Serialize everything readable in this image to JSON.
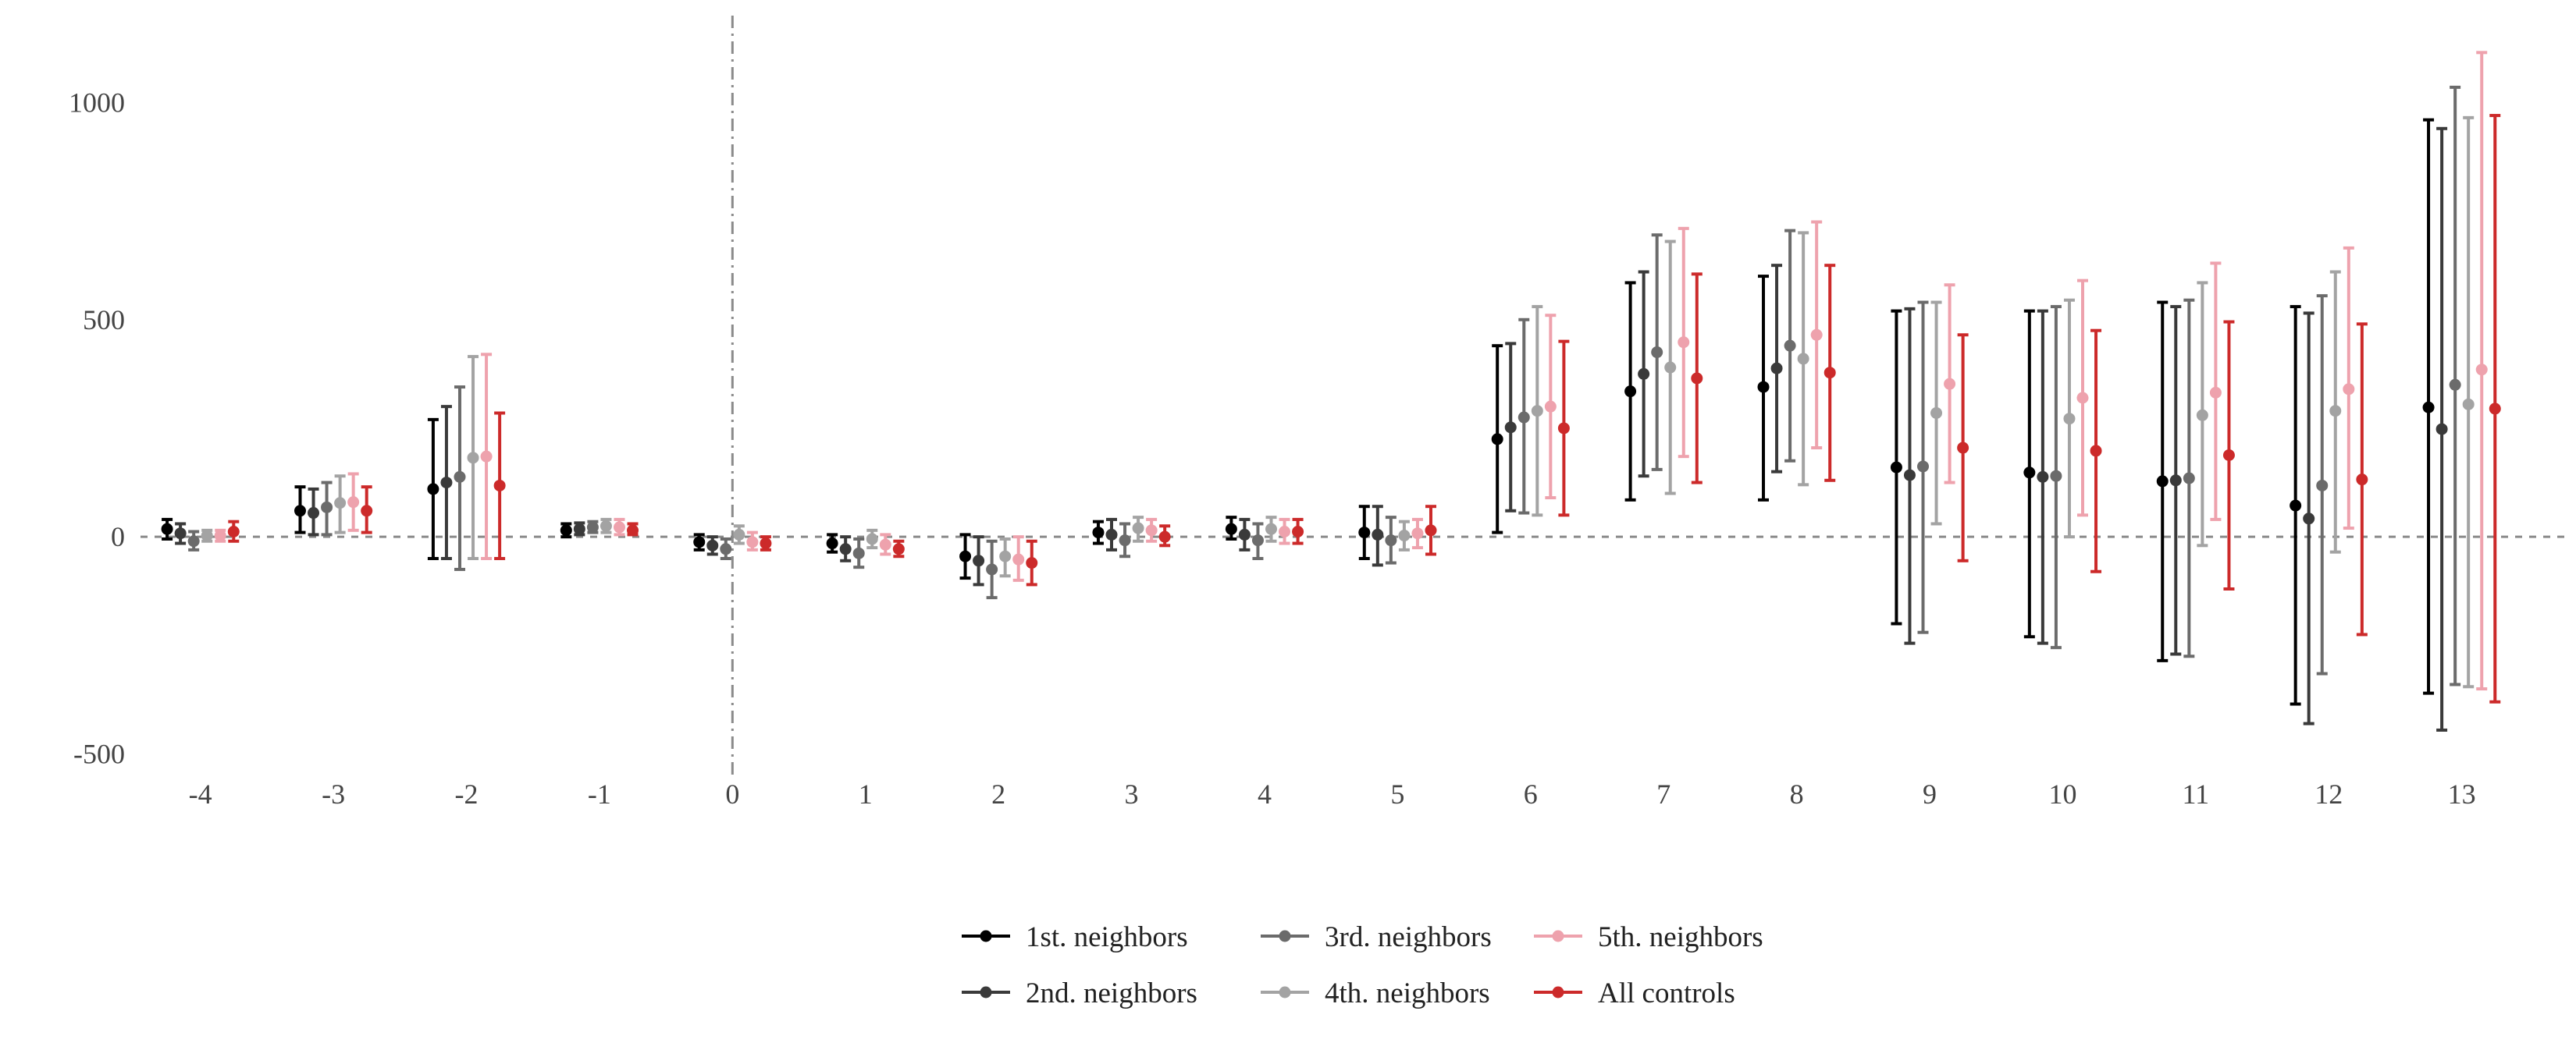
{
  "chart_data": {
    "type": "scatter",
    "subtype": "event-study point estimates with confidence intervals",
    "title": "",
    "xlabel": "",
    "ylabel": "",
    "x": [
      -4,
      -3,
      -2,
      -1,
      0,
      1,
      2,
      3,
      4,
      5,
      6,
      7,
      8,
      9,
      10,
      11,
      12,
      13
    ],
    "x_tick_labels": [
      "-4",
      "-3",
      "-2",
      "-1",
      "0",
      "1",
      "2",
      "3",
      "4",
      "5",
      "6",
      "7",
      "8",
      "9",
      "10",
      "11",
      "12",
      "13"
    ],
    "y_ticks": [
      -500,
      0,
      500,
      1000
    ],
    "y_tick_labels": [
      "-500",
      "0",
      "500",
      "1000"
    ],
    "ylim": [
      -560,
      1200
    ],
    "xlim": [
      -4.45,
      13.8
    ],
    "reference_lines": {
      "y": 0,
      "x": 0
    },
    "grid": false,
    "legend_position": "bottom",
    "series": [
      {
        "name": "1st. neighbors",
        "color": "#000000",
        "values": [
          18,
          60,
          110,
          15,
          -12,
          -15,
          -45,
          10,
          18,
          10,
          225,
          335,
          345,
          160,
          148,
          128,
          72,
          298
        ],
        "lower": [
          -5,
          10,
          -50,
          0,
          -30,
          -35,
          -95,
          -15,
          -5,
          -50,
          10,
          85,
          85,
          -200,
          -230,
          -285,
          -385,
          -360
        ],
        "upper": [
          40,
          115,
          270,
          30,
          5,
          5,
          5,
          35,
          45,
          70,
          440,
          585,
          600,
          520,
          520,
          540,
          530,
          960
        ]
      },
      {
        "name": "2nd. neighbors",
        "color": "#3a3a3a",
        "values": [
          8,
          55,
          125,
          18,
          -20,
          -28,
          -55,
          5,
          5,
          5,
          252,
          375,
          388,
          142,
          138,
          130,
          42,
          248
        ],
        "lower": [
          -15,
          5,
          -50,
          5,
          -40,
          -55,
          -110,
          -30,
          -30,
          -65,
          60,
          140,
          150,
          -245,
          -245,
          -270,
          -430,
          -445
        ],
        "upper": [
          30,
          110,
          300,
          32,
          0,
          0,
          0,
          40,
          40,
          70,
          445,
          610,
          625,
          525,
          520,
          530,
          515,
          940
        ]
      },
      {
        "name": "3rd. neighbors",
        "color": "#6b6b6b",
        "values": [
          -10,
          68,
          138,
          22,
          -28,
          -38,
          -75,
          -8,
          -8,
          -8,
          275,
          425,
          440,
          162,
          140,
          135,
          118,
          350
        ],
        "lower": [
          -30,
          5,
          -75,
          10,
          -50,
          -70,
          -140,
          -45,
          -50,
          -60,
          55,
          155,
          175,
          -220,
          -255,
          -275,
          -315,
          -340
        ],
        "upper": [
          12,
          125,
          345,
          35,
          -5,
          -5,
          -10,
          30,
          30,
          45,
          500,
          695,
          705,
          540,
          530,
          545,
          555,
          1035
        ]
      },
      {
        "name": "4th. neighbors",
        "color": "#a3a3a3",
        "values": [
          3,
          78,
          182,
          25,
          5,
          -5,
          -45,
          20,
          18,
          3,
          290,
          390,
          410,
          285,
          272,
          280,
          290,
          305
        ],
        "lower": [
          -10,
          10,
          -50,
          10,
          -15,
          -25,
          -90,
          -10,
          -10,
          -30,
          50,
          100,
          120,
          30,
          0,
          -20,
          -35,
          -345
        ],
        "upper": [
          15,
          140,
          415,
          40,
          25,
          15,
          -5,
          45,
          45,
          35,
          530,
          680,
          700,
          540,
          545,
          585,
          610,
          965
        ]
      },
      {
        "name": "5th. neighbors",
        "color": "#eea2ad",
        "values": [
          3,
          80,
          185,
          22,
          -12,
          -18,
          -52,
          15,
          12,
          8,
          300,
          448,
          465,
          352,
          320,
          332,
          340,
          385
        ],
        "lower": [
          -10,
          15,
          -50,
          5,
          -30,
          -40,
          -100,
          -10,
          -15,
          -25,
          90,
          185,
          205,
          125,
          50,
          40,
          20,
          -350
        ],
        "upper": [
          15,
          145,
          420,
          40,
          10,
          5,
          0,
          40,
          40,
          40,
          510,
          710,
          725,
          580,
          590,
          630,
          665,
          1115
        ]
      },
      {
        "name": "All controls",
        "color": "#cc2a2a",
        "values": [
          12,
          60,
          118,
          15,
          -15,
          -28,
          -60,
          0,
          12,
          15,
          250,
          365,
          378,
          205,
          198,
          188,
          132,
          295
        ],
        "lower": [
          -10,
          10,
          -50,
          5,
          -30,
          -45,
          -110,
          -20,
          -15,
          -40,
          50,
          125,
          130,
          -55,
          -80,
          -120,
          -225,
          -380
        ],
        "upper": [
          35,
          115,
          285,
          30,
          0,
          -10,
          -10,
          25,
          40,
          70,
          450,
          605,
          625,
          465,
          475,
          495,
          490,
          970
        ]
      }
    ]
  }
}
